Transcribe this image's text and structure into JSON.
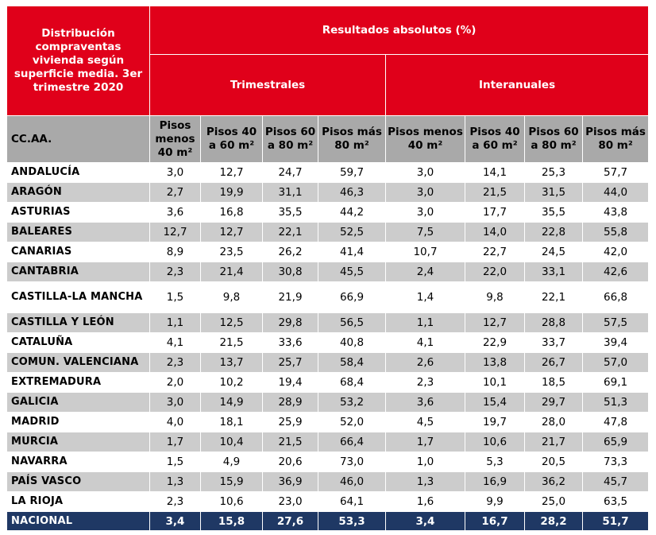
{
  "table": {
    "corner_title": "Distribución compraventas vivienda según superficie media. 3er trimestre 2020",
    "main_header": "Resultados absolutos (%)",
    "group_headers": [
      "Trimestrales",
      "Interanuales"
    ],
    "region_header": "CC.AA.",
    "column_headers": [
      "Pisos menos 40 m²",
      "Pisos 40 a 60 m²",
      "Pisos 60 a 80 m²",
      "Pisos más 80 m²",
      "Pisos menos 40 m²",
      "Pisos 40 a 60 m²",
      "Pisos 60 a 80 m²",
      "Pisos más 80 m²"
    ],
    "rows": [
      {
        "region": "ANDALUCÍA",
        "values": [
          "3,0",
          "12,7",
          "24,7",
          "59,7",
          "3,0",
          "14,1",
          "25,3",
          "57,7"
        ]
      },
      {
        "region": "ARAGÓN",
        "values": [
          "2,7",
          "19,9",
          "31,1",
          "46,3",
          "3,0",
          "21,5",
          "31,5",
          "44,0"
        ]
      },
      {
        "region": "ASTURIAS",
        "values": [
          "3,6",
          "16,8",
          "35,5",
          "44,2",
          "3,0",
          "17,7",
          "35,5",
          "43,8"
        ]
      },
      {
        "region": "BALEARES",
        "values": [
          "12,7",
          "12,7",
          "22,1",
          "52,5",
          "7,5",
          "14,0",
          "22,8",
          "55,8"
        ]
      },
      {
        "region": "CANARIAS",
        "values": [
          "8,9",
          "23,5",
          "26,2",
          "41,4",
          "10,7",
          "22,7",
          "24,5",
          "42,0"
        ]
      },
      {
        "region": "CANTABRIA",
        "values": [
          "2,3",
          "21,4",
          "30,8",
          "45,5",
          "2,4",
          "22,0",
          "33,1",
          "42,6"
        ]
      },
      {
        "region": "CASTILLA-LA MANCHA",
        "values": [
          "1,5",
          "9,8",
          "21,9",
          "66,9",
          "1,4",
          "9,8",
          "22,1",
          "66,8"
        ]
      },
      {
        "region": "CASTILLA Y LEÓN",
        "values": [
          "1,1",
          "12,5",
          "29,8",
          "56,5",
          "1,1",
          "12,7",
          "28,8",
          "57,5"
        ]
      },
      {
        "region": "CATALUÑA",
        "values": [
          "4,1",
          "21,5",
          "33,6",
          "40,8",
          "4,1",
          "22,9",
          "33,7",
          "39,4"
        ]
      },
      {
        "region": "COMUN. VALENCIANA",
        "values": [
          "2,3",
          "13,7",
          "25,7",
          "58,4",
          "2,6",
          "13,8",
          "26,7",
          "57,0"
        ]
      },
      {
        "region": "EXTREMADURA",
        "values": [
          "2,0",
          "10,2",
          "19,4",
          "68,4",
          "2,3",
          "10,1",
          "18,5",
          "69,1"
        ]
      },
      {
        "region": "GALICIA",
        "values": [
          "3,0",
          "14,9",
          "28,9",
          "53,2",
          "3,6",
          "15,4",
          "29,7",
          "51,3"
        ]
      },
      {
        "region": "MADRID",
        "values": [
          "4,0",
          "18,1",
          "25,9",
          "52,0",
          "4,5",
          "19,7",
          "28,0",
          "47,8"
        ]
      },
      {
        "region": "MURCIA",
        "values": [
          "1,7",
          "10,4",
          "21,5",
          "66,4",
          "1,7",
          "10,6",
          "21,7",
          "65,9"
        ]
      },
      {
        "region": "NAVARRA",
        "values": [
          "1,5",
          "4,9",
          "20,6",
          "73,0",
          "1,0",
          "5,3",
          "20,5",
          "73,3"
        ]
      },
      {
        "region": "PAÍS VASCO",
        "values": [
          "1,3",
          "15,9",
          "36,9",
          "46,0",
          "1,3",
          "16,9",
          "36,2",
          "45,7"
        ]
      },
      {
        "region": "LA RIOJA",
        "values": [
          "2,3",
          "10,6",
          "23,0",
          "64,1",
          "1,6",
          "9,9",
          "25,0",
          "63,5"
        ]
      }
    ],
    "total": {
      "region": "NACIONAL",
      "values": [
        "3,4",
        "15,8",
        "27,6",
        "53,3",
        "3,4",
        "16,7",
        "28,2",
        "51,7"
      ]
    }
  },
  "colors": {
    "header_red": "#e0001a",
    "header_gray": "#a9a9a9",
    "row_even": "#cccccc",
    "row_odd": "#ffffff",
    "total_navy": "#1f3864"
  }
}
